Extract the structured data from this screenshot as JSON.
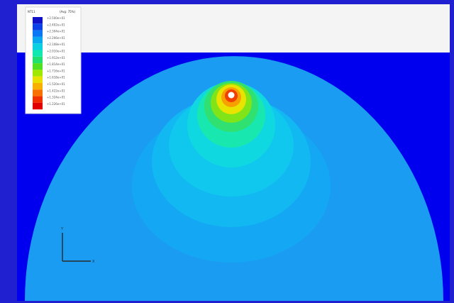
{
  "viewer": {
    "frame_color": "#2020d0",
    "background_color": "#0000ee",
    "top_strip_color": "#f4f4f4"
  },
  "legend": {
    "header_left": "NT11",
    "header_right": "(Avg: 75%)",
    "entries": [
      {
        "label": "+2.500e+01",
        "color": "#1010c8"
      },
      {
        "label": "+2.402e+01",
        "color": "#0a40e6"
      },
      {
        "label": "+2.304e+01",
        "color": "#0a78f4"
      },
      {
        "label": "+2.206e+01",
        "color": "#08a8f0"
      },
      {
        "label": "+2.108e+01",
        "color": "#08d0e0"
      },
      {
        "label": "+2.010e+01",
        "color": "#10e8b0"
      },
      {
        "label": "+1.912e+01",
        "color": "#20e070"
      },
      {
        "label": "+1.814e+01",
        "color": "#50e020"
      },
      {
        "label": "+1.716e+01",
        "color": "#a0e800"
      },
      {
        "label": "+1.618e+01",
        "color": "#e8e000"
      },
      {
        "label": "+1.520e+01",
        "color": "#f8b000"
      },
      {
        "label": "+1.422e+01",
        "color": "#f87000"
      },
      {
        "label": "+1.324e+01",
        "color": "#f03000"
      },
      {
        "label": "+1.226e+01",
        "color": "#e00000"
      }
    ]
  },
  "contour_field": {
    "outer_color": "#1a9cf2",
    "rings": [
      {
        "color": "#14a8f4"
      },
      {
        "color": "#12b8f2"
      },
      {
        "color": "#10c8ee"
      },
      {
        "color": "#10d8e0"
      },
      {
        "color": "#18e8b0"
      },
      {
        "color": "#30e070"
      },
      {
        "color": "#80e418"
      },
      {
        "color": "#e8e400"
      },
      {
        "color": "#f8a000"
      },
      {
        "color": "#f04000"
      },
      {
        "color": "#ffffff"
      }
    ]
  },
  "triad": {
    "axis_color": "#2a2a2a",
    "x_label": "X",
    "y_label": "Y"
  }
}
